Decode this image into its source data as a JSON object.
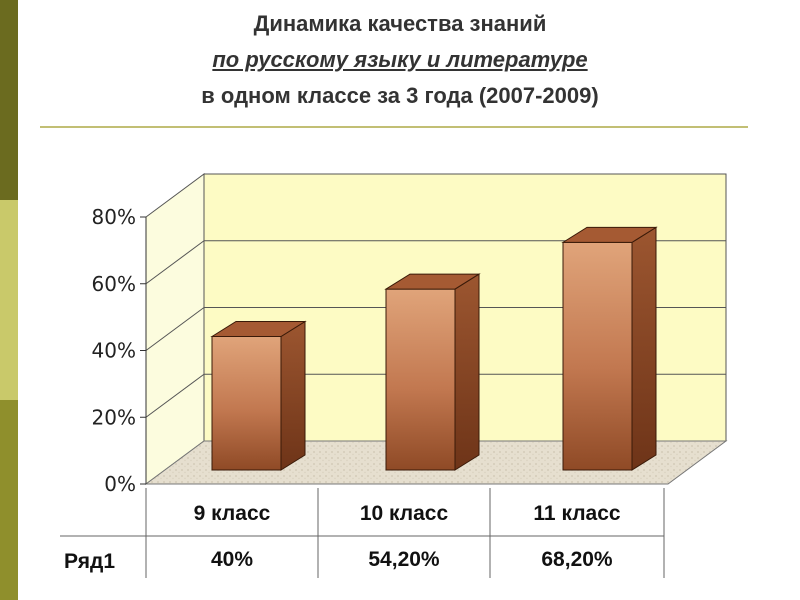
{
  "title": {
    "line1": "Динамика качества знаний",
    "line2": "по русскому языку и литературе",
    "line3": "в одном классе за 3 года (2007-2009)"
  },
  "colors": {
    "strip_dark": "#6b6b1f",
    "strip_light": "#c9c96a",
    "back_wall": "#fdfbc4",
    "bar_front": "#c9825a",
    "bar_top": "#a55a33",
    "bar_side": "#8a4321"
  },
  "chart_data": {
    "type": "bar",
    "categories": [
      "9 класс",
      "10 класс",
      "11 класс"
    ],
    "series": [
      {
        "name": "Ряд1",
        "values": [
          40,
          54.2,
          68.2
        ],
        "labels": [
          "40%",
          "54,20%",
          "68,20%"
        ]
      }
    ],
    "ylim": [
      0,
      80
    ],
    "yticks": [
      "0%",
      "20%",
      "40%",
      "60%",
      "80%"
    ],
    "grid": true,
    "table_below": true
  }
}
